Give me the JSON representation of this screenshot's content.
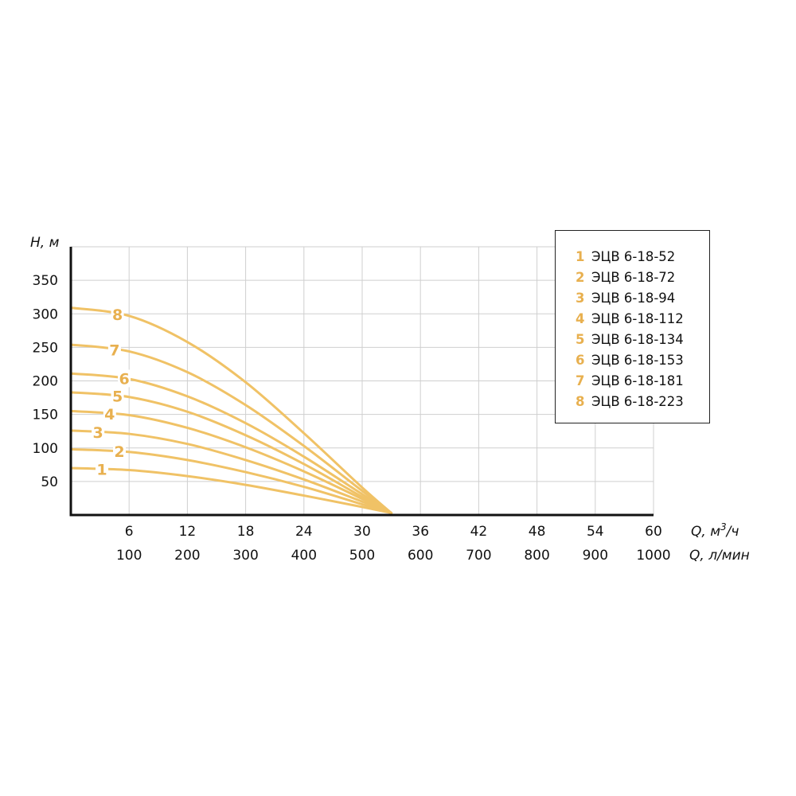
{
  "colors": {
    "curve": "#F0C266",
    "legend_number": "#E8B04F",
    "grid": "#cfcfcf",
    "axis": "#111111"
  },
  "chart_data": {
    "type": "line",
    "ylabel": "H, м",
    "xlabel_primary": "Q, м³/ч",
    "xlabel_primary_base": "Q, м",
    "xlabel_primary_sup": "3",
    "xlabel_primary_tail": "/ч",
    "xlabel_secondary": "Q, л/мин",
    "ylim": [
      0,
      400
    ],
    "xlim": [
      0,
      60
    ],
    "yticks": [
      50,
      100,
      150,
      200,
      250,
      300,
      350
    ],
    "xticks_primary": [
      6,
      12,
      18,
      24,
      30,
      36,
      42,
      48,
      54,
      60
    ],
    "xticks_secondary": [
      100,
      200,
      300,
      400,
      500,
      600,
      700,
      800,
      900,
      1000
    ],
    "grid": true,
    "legend_position": "top-right",
    "series": [
      {
        "name": "ЭЦВ 6-18-52",
        "label": "1",
        "x": [
          0,
          6,
          12,
          18,
          24,
          30,
          33
        ],
        "y": [
          70,
          67,
          58,
          45,
          29,
          12,
          3
        ]
      },
      {
        "name": "ЭЦВ 6-18-72",
        "label": "2",
        "x": [
          0,
          6,
          12,
          18,
          24,
          30,
          33
        ],
        "y": [
          98,
          94,
          82,
          64,
          42,
          16,
          3
        ]
      },
      {
        "name": "ЭЦВ 6-18-94",
        "label": "3",
        "x": [
          0,
          6,
          12,
          18,
          24,
          30,
          33
        ],
        "y": [
          126,
          121,
          106,
          82,
          53,
          20,
          3
        ]
      },
      {
        "name": "ЭЦВ 6-18-112",
        "label": "4",
        "x": [
          0,
          6,
          12,
          18,
          24,
          30,
          33
        ],
        "y": [
          155,
          149,
          130,
          101,
          65,
          24,
          3
        ]
      },
      {
        "name": "ЭЦВ 6-18-134",
        "label": "5",
        "x": [
          0,
          6,
          12,
          18,
          24,
          30,
          33
        ],
        "y": [
          183,
          176,
          154,
          119,
          76,
          27,
          3
        ]
      },
      {
        "name": "ЭЦВ 6-18-153",
        "label": "6",
        "x": [
          0,
          6,
          12,
          18,
          24,
          30,
          33
        ],
        "y": [
          211,
          203,
          177,
          137,
          87,
          31,
          3
        ]
      },
      {
        "name": "ЭЦВ 6-18-181",
        "label": "7",
        "x": [
          0,
          6,
          12,
          18,
          24,
          30,
          33
        ],
        "y": [
          254,
          244,
          213,
          164,
          103,
          36,
          3
        ]
      },
      {
        "name": "ЭЦВ 6-18-223",
        "label": "8",
        "x": [
          0,
          6,
          12,
          18,
          24,
          30,
          33
        ],
        "y": [
          309,
          297,
          258,
          198,
          122,
          41,
          3
        ]
      }
    ],
    "curve_label_x": [
      3.2,
      5.0,
      2.8,
      4.0,
      4.8,
      5.5,
      4.5,
      4.8
    ]
  }
}
